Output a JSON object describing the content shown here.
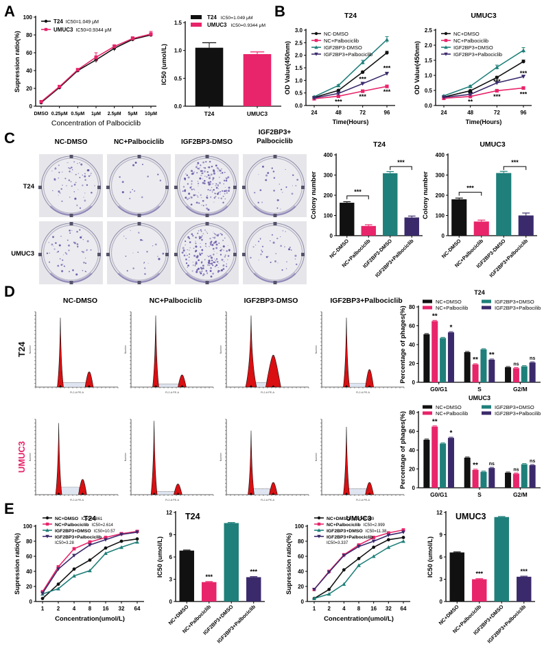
{
  "colors": {
    "black": "#111111",
    "pink": "#e8246a",
    "teal": "#1f7f7a",
    "purple": "#3b2a6b",
    "red_fill": "#d90f12",
    "dish_bg": "#e6e6ea",
    "stain": "#6a5aa8"
  },
  "panels": {
    "A": "A",
    "B": "B",
    "C": "C",
    "D": "D",
    "E": "E"
  },
  "chart_data": [
    {
      "id": "A1",
      "type": "line",
      "title": "",
      "xlabel": "Concentration of Palbociclib",
      "ylabel": "Supression ratio(%)",
      "categories": [
        "DMSO",
        "0.25μM",
        "0.5μM",
        "1μM",
        "2.5μM",
        "5μM",
        "10μM"
      ],
      "ylim": [
        0,
        100
      ],
      "yticks": [
        0,
        20,
        40,
        60,
        80,
        100
      ],
      "legend_position": "top-left",
      "series": [
        {
          "name": "T24",
          "note": "IC50=1.049 μM",
          "color": "#111111",
          "marker": "circle",
          "values": [
            4,
            21,
            40,
            52,
            65,
            75,
            80
          ],
          "errors": [
            1,
            2,
            1.5,
            3,
            3,
            2,
            2
          ]
        },
        {
          "name": "UMUC3",
          "note": "IC50=0.9344 μM",
          "color": "#e8246a",
          "marker": "square",
          "values": [
            5,
            22,
            41,
            55,
            67,
            76,
            81
          ],
          "errors": [
            1,
            1.5,
            1,
            5,
            2,
            2,
            3
          ]
        }
      ]
    },
    {
      "id": "A2",
      "type": "bar",
      "title": "",
      "xlabel": "",
      "ylabel": "IC50 (umol/L)",
      "categories": [
        "T24",
        "UMUC3"
      ],
      "values": [
        1.049,
        0.9344
      ],
      "errors": [
        0.09,
        0.04
      ],
      "colors": [
        "#111111",
        "#e8246a"
      ],
      "ylim": [
        0,
        1.5
      ],
      "yticks": [
        "0.0",
        "0.5",
        "1.0",
        "1.5"
      ],
      "legend": [
        {
          "name": "T24",
          "note": "IC50=1.049 μM",
          "color": "#111111"
        },
        {
          "name": "UMUC3",
          "note": "IC50=0.9344 μM",
          "color": "#e8246a"
        }
      ],
      "legend_position": "top"
    },
    {
      "id": "B1",
      "type": "line",
      "title": "T24",
      "xlabel": "Time(Hours)",
      "ylabel": "OD Value(450nm)",
      "categories": [
        "24",
        "48",
        "72",
        "96"
      ],
      "ylim": [
        0,
        3.0
      ],
      "yticks": [
        "0.0",
        "0.5",
        "1.0",
        "1.5",
        "2.0",
        "2.5",
        "3.0"
      ],
      "legend_position": "top-left",
      "series": [
        {
          "name": "NC-DMSO",
          "color": "#111111",
          "marker": "circle",
          "values": [
            0.32,
            0.6,
            1.33,
            2.1
          ],
          "errors": [
            0.02,
            0.03,
            0.04,
            0.06
          ]
        },
        {
          "name": "NC+Palbociclib",
          "color": "#e8246a",
          "marker": "square",
          "values": [
            0.27,
            0.37,
            0.57,
            0.76
          ],
          "errors": [
            0.02,
            0.02,
            0.03,
            0.04
          ]
        },
        {
          "name": "IGF2BP3-DMSO",
          "color": "#1f7f7a",
          "marker": "triangle",
          "values": [
            0.35,
            0.8,
            1.72,
            2.62
          ],
          "errors": [
            0.02,
            0.03,
            0.08,
            0.12
          ]
        },
        {
          "name": "IGF2BP3+Palbociclib",
          "color": "#3b2a6b",
          "marker": "triangle-down",
          "values": [
            0.3,
            0.48,
            0.87,
            1.27
          ],
          "errors": [
            0.02,
            0.03,
            0.03,
            0.04
          ]
        }
      ],
      "annotations": [
        {
          "x": "48",
          "y": 0.15,
          "text": "***"
        },
        {
          "x": "72",
          "y": 1.05,
          "text": "***"
        },
        {
          "x": "72",
          "y": 0.35,
          "text": "***"
        },
        {
          "x": "96",
          "y": 1.48,
          "text": "***"
        },
        {
          "x": "96",
          "y": 0.55,
          "text": "***"
        }
      ]
    },
    {
      "id": "B2",
      "type": "line",
      "title": "UMUC3",
      "xlabel": "Time(Hours)",
      "ylabel": "OD Value(450nm)",
      "categories": [
        "24",
        "48",
        "72",
        "96"
      ],
      "ylim": [
        0,
        2.5
      ],
      "yticks": [
        "0.0",
        "0.5",
        "1.0",
        "1.5",
        "2.0",
        "2.5"
      ],
      "legend_position": "top-left",
      "series": [
        {
          "name": "NC+DMSO",
          "color": "#111111",
          "marker": "circle",
          "values": [
            0.28,
            0.49,
            0.93,
            1.46
          ],
          "errors": [
            0.02,
            0.03,
            0.04,
            0.05
          ]
        },
        {
          "name": "NC+Palbociclib",
          "color": "#e8246a",
          "marker": "square",
          "values": [
            0.24,
            0.3,
            0.49,
            0.58
          ],
          "errors": [
            0.02,
            0.02,
            0.03,
            0.03
          ]
        },
        {
          "name": "IGF2BP3+DMSO",
          "color": "#1f7f7a",
          "marker": "triangle",
          "values": [
            0.32,
            0.64,
            1.27,
            1.83
          ],
          "errors": [
            0.02,
            0.03,
            0.07,
            0.09
          ]
        },
        {
          "name": "IGF2BP3+Palbociclib",
          "color": "#3b2a6b",
          "marker": "triangle-down",
          "values": [
            0.27,
            0.37,
            0.75,
            0.96
          ],
          "errors": [
            0.02,
            0.02,
            0.03,
            0.03
          ]
        }
      ],
      "annotations": [
        {
          "x": "48",
          "y": 0.12,
          "text": "**"
        },
        {
          "x": "48",
          "y": 0.4,
          "text": "**"
        },
        {
          "x": "72",
          "y": 0.8,
          "text": "***"
        },
        {
          "x": "72",
          "y": 0.3,
          "text": "***"
        },
        {
          "x": "96",
          "y": 1.07,
          "text": "***"
        },
        {
          "x": "96",
          "y": 0.38,
          "text": "***"
        }
      ]
    },
    {
      "id": "C1",
      "type": "bar",
      "title": "T24",
      "xlabel": "",
      "ylabel": "Colony number",
      "categories": [
        "NC-DMSO",
        "NC+Palbociclib",
        "IGF2BP3-DMSO",
        "IGF2BP3+Palbociclib"
      ],
      "values": [
        163,
        48,
        309,
        90
      ],
      "errors": [
        5,
        6,
        8,
        7
      ],
      "colors": [
        "#111111",
        "#e8246a",
        "#1f7f7a",
        "#3b2a6b"
      ],
      "ylim": [
        0,
        400
      ],
      "yticks": [
        "0",
        "100",
        "200",
        "300",
        "400"
      ],
      "brackets": [
        {
          "from": 0,
          "to": 1,
          "y": 197,
          "text": "***"
        },
        {
          "from": 2,
          "to": 3,
          "y": 342,
          "text": "***"
        }
      ]
    },
    {
      "id": "C2",
      "type": "bar",
      "title": "UMUC3",
      "xlabel": "",
      "ylabel": "Colony number",
      "categories": [
        "NC-DMSO",
        "NC+Palbociclib",
        "IGF2BP3-DMSO",
        "IGF2BP3+Palbociclib"
      ],
      "values": [
        180,
        70,
        310,
        100
      ],
      "errors": [
        6,
        7,
        8,
        12
      ],
      "colors": [
        "#111111",
        "#e8246a",
        "#1f7f7a",
        "#3b2a6b"
      ],
      "ylim": [
        0,
        400
      ],
      "yticks": [
        "0",
        "100",
        "200",
        "300",
        "400"
      ],
      "brackets": [
        {
          "from": 0,
          "to": 1,
          "y": 215,
          "text": "***"
        },
        {
          "from": 2,
          "to": 3,
          "y": 342,
          "text": "***"
        }
      ]
    },
    {
      "id": "D-T24",
      "type": "bar",
      "title": "T24",
      "xlabel": "",
      "ylabel": "Percentage of phages(%)",
      "categories": [
        "G0/G1",
        "S",
        "G2/M"
      ],
      "ylim": [
        0,
        80
      ],
      "yticks": [
        "0",
        "20",
        "40",
        "60",
        "80"
      ],
      "legend_position": "top",
      "series": [
        {
          "name": "NC+DMSO",
          "color": "#111111",
          "values": [
            51,
            32,
            16
          ]
        },
        {
          "name": "NC+Palbocilib",
          "color": "#e8246a",
          "values": [
            65,
            19,
            15
          ]
        },
        {
          "name": "IGF2BP3+DMSO",
          "color": "#1f7f7a",
          "values": [
            47,
            35,
            17
          ]
        },
        {
          "name": "IGF2BP3+Palbocilib",
          "color": "#3b2a6b",
          "values": [
            53,
            24,
            21
          ]
        }
      ],
      "significance": [
        [
          "",
          "",
          ""
        ],
        [
          "**",
          "**",
          "ns"
        ],
        [
          "",
          "",
          ""
        ],
        [
          "*",
          "**",
          "ns"
        ]
      ]
    },
    {
      "id": "D-UMUC3",
      "type": "bar",
      "title": "UMUC3",
      "xlabel": "",
      "ylabel": "Percentage of phages(%)",
      "categories": [
        "G0/G1",
        "S",
        "G2/M"
      ],
      "ylim": [
        0,
        80
      ],
      "yticks": [
        "0",
        "20",
        "40",
        "60",
        "80"
      ],
      "legend_position": "top",
      "series": [
        {
          "name": "NC+DMSO",
          "color": "#111111",
          "values": [
            51,
            32,
            16
          ]
        },
        {
          "name": "NC+Palbocilib",
          "color": "#e8246a",
          "values": [
            65,
            19,
            15
          ]
        },
        {
          "name": "IGF2BP3+DMSO",
          "color": "#1f7f7a",
          "values": [
            47,
            17,
            25
          ]
        },
        {
          "name": "IGF2BP3+Palbocilib",
          "color": "#3b2a6b",
          "values": [
            53,
            21,
            24
          ]
        }
      ],
      "significance": [
        [
          "",
          "",
          ""
        ],
        [
          "**",
          "**",
          "ns"
        ],
        [
          "",
          "",
          ""
        ],
        [
          "*",
          "ns",
          "ns"
        ]
      ]
    },
    {
      "id": "E1",
      "type": "line",
      "title": "T24",
      "xlabel": "Concentration(umol/L)",
      "ylabel": "Supression ratio(%)",
      "categories": [
        "1",
        "2",
        "4",
        "8",
        "16",
        "32",
        "64"
      ],
      "ylim": [
        0,
        100
      ],
      "yticks": [
        "0",
        "20",
        "40",
        "60",
        "80",
        "100"
      ],
      "legend_position": "top-left",
      "series": [
        {
          "name": "NC+DMSO",
          "note": "IC50=6.861",
          "color": "#111111",
          "marker": "circle",
          "values": [
            4,
            23,
            43,
            55,
            71,
            80,
            83
          ]
        },
        {
          "name": "NC+Palbociclib",
          "note": "IC50=2.614",
          "color": "#e8246a",
          "marker": "square",
          "values": [
            13,
            46,
            70,
            79,
            85,
            90,
            93
          ]
        },
        {
          "name": "IGF2BP3+DMSO",
          "note": "IC50=10.57",
          "color": "#1f7f7a",
          "marker": "triangle",
          "values": [
            10,
            17,
            34,
            41,
            64,
            72,
            79
          ]
        },
        {
          "name": "IGF2BP3+Palbociclib",
          "note": "IC50=3.28",
          "color": "#3b2a6b",
          "marker": "triangle-down",
          "values": [
            11,
            43,
            61,
            75,
            82,
            89,
            92
          ]
        }
      ]
    },
    {
      "id": "E2",
      "type": "bar",
      "title": "T24",
      "xlabel": "",
      "ylabel": "IC50 (umol/L)",
      "categories": [
        "NC+DMSO",
        "NC+Palbociclib",
        "IGF2BP3+DMSO",
        "IGF2BP3+Palbociclib"
      ],
      "values": [
        6.861,
        2.614,
        10.57,
        3.28
      ],
      "colors": [
        "#111111",
        "#e8246a",
        "#1f7f7a",
        "#3b2a6b"
      ],
      "ylim": [
        0,
        12
      ],
      "yticks": [
        "0",
        "3",
        "6",
        "9",
        "12"
      ],
      "significance": [
        "",
        "***",
        "",
        "***"
      ]
    },
    {
      "id": "E3",
      "type": "line",
      "title": "UMUC3",
      "xlabel": "Concentration(umol/L)",
      "ylabel": "Supression ratio(%)",
      "categories": [
        "1",
        "2",
        "4",
        "8",
        "16",
        "32",
        "64"
      ],
      "ylim": [
        0,
        100
      ],
      "yticks": [
        "0",
        "20",
        "40",
        "60",
        "80",
        "100"
      ],
      "legend_position": "top-left",
      "series": [
        {
          "name": "NC+DMSO",
          "note": "IC50=6.609",
          "color": "#111111",
          "marker": "circle",
          "values": [
            4,
            16,
            42,
            57,
            72,
            82,
            85
          ]
        },
        {
          "name": "NC+Palbociclib",
          "note": "IC50=2.999",
          "color": "#e8246a",
          "marker": "square",
          "values": [
            16,
            40,
            62,
            75,
            85,
            91,
            95
          ]
        },
        {
          "name": "IGF2BP3+DMSO",
          "note": "IC50=11.38",
          "color": "#1f7f7a",
          "marker": "triangle",
          "values": [
            4,
            10,
            23,
            48,
            60,
            72,
            80
          ]
        },
        {
          "name": "IGF2BP3+Palbociclib",
          "note": "IC50=3.337",
          "color": "#3b2a6b",
          "marker": "triangle-down",
          "values": [
            16,
            39,
            61,
            73,
            80,
            88,
            92
          ]
        }
      ]
    },
    {
      "id": "E4",
      "type": "bar",
      "title": "UMUC3",
      "xlabel": "",
      "ylabel": "IC50 (umol/L)",
      "categories": [
        "NC+DMSO",
        "NC+Palbociclib",
        "IGF2BP3+DMSO",
        "IGF2BP3+Palbociclib"
      ],
      "values": [
        6.609,
        2.999,
        11.38,
        3.337
      ],
      "colors": [
        "#111111",
        "#e8246a",
        "#1f7f7a",
        "#3b2a6b"
      ],
      "ylim": [
        0,
        12
      ],
      "yticks": [
        "0",
        "3",
        "6",
        "9",
        "12"
      ],
      "significance": [
        "",
        "***",
        "",
        "***"
      ]
    }
  ],
  "colony_images": {
    "columns": [
      "NC-DMSO",
      "NC+Palbociclib",
      "IGF2BP3-DMSO",
      "IGF2BP3+\nPalbociclib"
    ],
    "rows": [
      "T24",
      "UMUC3"
    ],
    "density": [
      [
        0.35,
        0.08,
        0.9,
        0.15
      ],
      [
        0.3,
        0.12,
        1.0,
        0.2
      ]
    ]
  },
  "flow_cytometry": {
    "columns": [
      "NC-DMSO",
      "NC+Palbociclib",
      "IGF2BP3-DMSO",
      "IGF2BP3+Palbociclib"
    ],
    "rows": [
      "T24",
      "UMUC3"
    ],
    "x_axis_label": "FL2-A PE-A",
    "y_axis_label": "Number",
    "row_colors": [
      "#111111",
      "#e8246a"
    ],
    "histograms": [
      [
        {
          "g1": 0.3,
          "g1h": 0.92,
          "g2": 0.65,
          "g2h": 0.2,
          "s": 0.06
        },
        {
          "g1": 0.3,
          "g1h": 0.95,
          "g2": 0.62,
          "g2h": 0.16,
          "s": 0.04
        },
        {
          "g1": 0.3,
          "g1h": 0.95,
          "g2": 0.57,
          "g2h": 0.42,
          "s": 0.06
        },
        {
          "g1": 0.3,
          "g1h": 0.92,
          "g2": 0.58,
          "g2h": 0.23,
          "s": 0.05
        }
      ],
      [
        {
          "g1": 0.28,
          "g1h": 0.95,
          "g2": 0.57,
          "g2h": 0.2,
          "s": 0.1
        },
        {
          "g1": 0.28,
          "g1h": 0.98,
          "g2": 0.57,
          "g2h": 0.14,
          "s": 0.04
        },
        {
          "g1": 0.3,
          "g1h": 0.85,
          "g2": 0.57,
          "g2h": 0.16,
          "s": 0.08
        },
        {
          "g1": 0.3,
          "g1h": 0.9,
          "g2": 0.58,
          "g2h": 0.16,
          "s": 0.08
        }
      ]
    ]
  }
}
